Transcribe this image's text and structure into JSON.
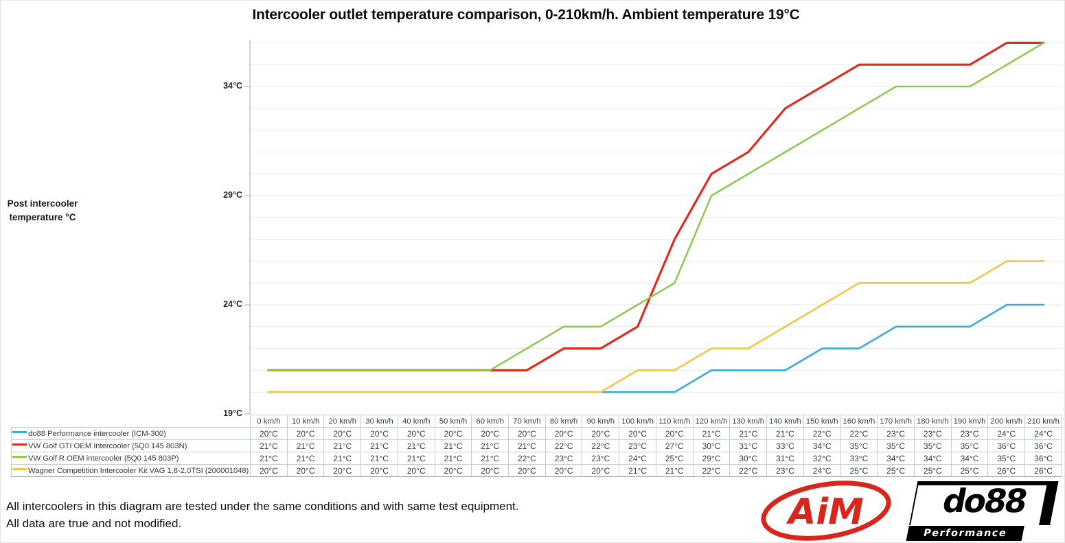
{
  "title": "Intercooler outlet temperature comparison, 0-210km/h. Ambient temperature 19°C",
  "y_axis": {
    "line1": "Post intercooler",
    "line2": "temperature °C"
  },
  "chart_data": {
    "type": "line",
    "title": "Intercooler outlet temperature comparison, 0-210km/h. Ambient temperature 19°C",
    "xlabel": "",
    "ylabel": "Post intercooler temperature °C",
    "categories": [
      "0 km/h",
      "10 km/h",
      "20 km/h",
      "30 km/h",
      "40 km/h",
      "50 km/h",
      "60 km/h",
      "70 km/h",
      "80 km/h",
      "90 km/h",
      "100 km/h",
      "110 km/h",
      "120 km/h",
      "130 km/h",
      "140 km/h",
      "150 km/h",
      "160 km/h",
      "170 km/h",
      "180 km/h",
      "190 km/h",
      "200 km/h",
      "210 km/h"
    ],
    "ylim": [
      19,
      36.2
    ],
    "y_gridline_step": 1,
    "grid": "horizontal",
    "legend_position": "table-rows-below-chart",
    "unit_suffix": "°C",
    "y_axis_ticks": [
      {
        "value": 19,
        "label": "19°C"
      },
      {
        "value": 24,
        "label": "24°C"
      },
      {
        "value": 29,
        "label": "29°C"
      },
      {
        "value": 34,
        "label": "34°C"
      }
    ],
    "series": [
      {
        "name": "do88 Performance intercooler (ICM-300)",
        "color": "#3BAAD5",
        "values": [
          20,
          20,
          20,
          20,
          20,
          20,
          20,
          20,
          20,
          20,
          20,
          20,
          21,
          21,
          21,
          22,
          22,
          23,
          23,
          23,
          24,
          24
        ]
      },
      {
        "name": "VW Golf GTI OEM Intercooler (5Q0 145 803N)",
        "color": "#DD2B1E",
        "values": [
          21,
          21,
          21,
          21,
          21,
          21,
          21,
          21,
          22,
          22,
          23,
          27,
          30,
          31,
          33,
          34,
          35,
          35,
          35,
          35,
          36,
          36
        ]
      },
      {
        "name": "VW Golf R OEM intercooler (5Q0 145 803P)",
        "color": "#90C951",
        "values": [
          21,
          21,
          21,
          21,
          21,
          21,
          21,
          22,
          23,
          23,
          24,
          25,
          29,
          30,
          31,
          32,
          33,
          34,
          34,
          34,
          35,
          36
        ]
      },
      {
        "name": "Wagner Competition Intercooler Kit VAG 1,8-2,0TSI (200001048)",
        "color": "#F0C64A",
        "values": [
          20,
          20,
          20,
          20,
          20,
          20,
          20,
          20,
          20,
          20,
          21,
          21,
          22,
          22,
          23,
          24,
          25,
          25,
          25,
          25,
          26,
          26
        ]
      }
    ]
  },
  "footnotes": [
    "All intercoolers in this diagram are tested under the same conditions and with same test equipment.",
    "All data are true and not modified."
  ],
  "logos": {
    "aim_text": "AiM",
    "aim_color": "#D7271D",
    "do88_text": "do88",
    "do88_subtext": "Performance"
  }
}
